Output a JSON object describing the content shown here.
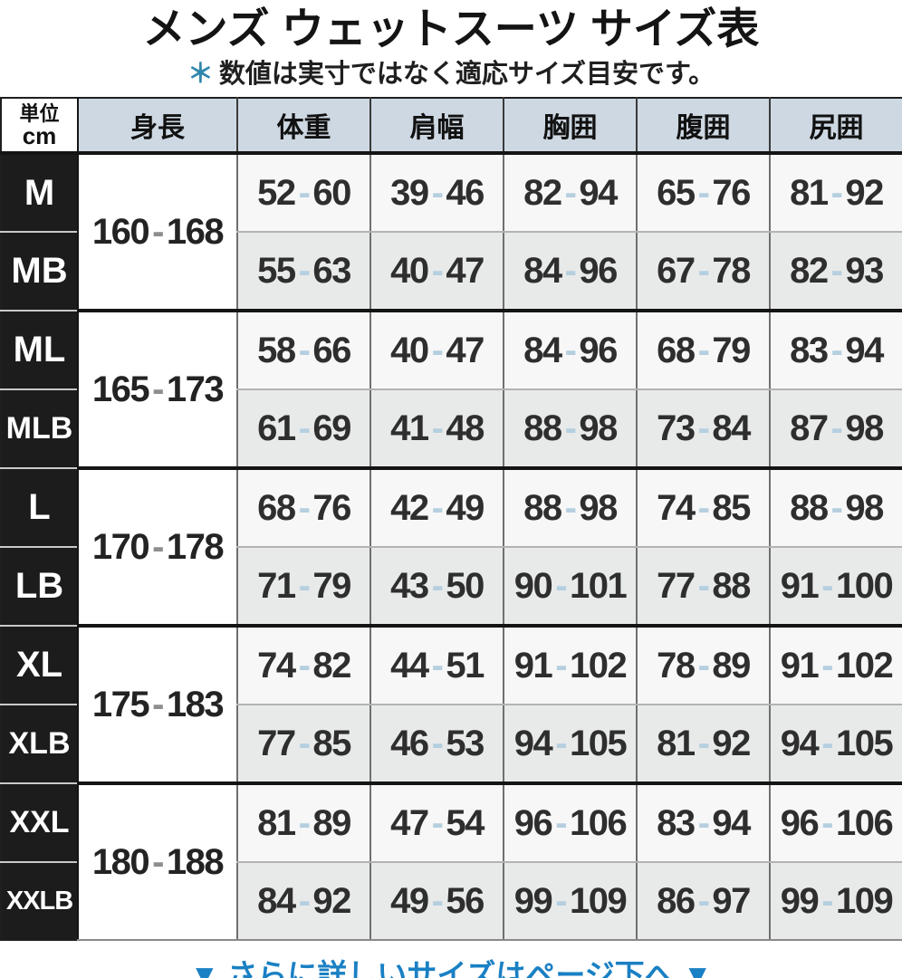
{
  "title": "メンズ ウェットスーツ サイズ表",
  "note": {
    "marker": "＊",
    "text": "数値は実寸ではなく適応サイズ目安です。"
  },
  "table": {
    "unit_header": {
      "line1": "単位",
      "line2": "cm"
    },
    "column_headers": [
      "身長",
      "体重",
      "肩幅",
      "胸囲",
      "腹囲",
      "尻囲"
    ],
    "groups": [
      {
        "height": "160-168",
        "rows": [
          {
            "size": "M",
            "values": [
              "52-60",
              "39-46",
              "82-94",
              "65-76",
              "81-92"
            ]
          },
          {
            "size": "MB",
            "values": [
              "55-63",
              "40-47",
              "84-96",
              "67-78",
              "82-93"
            ]
          }
        ]
      },
      {
        "height": "165-173",
        "rows": [
          {
            "size": "ML",
            "values": [
              "58-66",
              "40-47",
              "84-96",
              "68-79",
              "83-94"
            ]
          },
          {
            "size": "MLB",
            "values": [
              "61-69",
              "41-48",
              "88-98",
              "73-84",
              "87-98"
            ]
          }
        ]
      },
      {
        "height": "170-178",
        "rows": [
          {
            "size": "L",
            "values": [
              "68-76",
              "42-49",
              "88-98",
              "74-85",
              "88-98"
            ]
          },
          {
            "size": "LB",
            "values": [
              "71-79",
              "43-50",
              "90-101",
              "77-88",
              "91-100"
            ]
          }
        ]
      },
      {
        "height": "175-183",
        "rows": [
          {
            "size": "XL",
            "values": [
              "74-82",
              "44-51",
              "91-102",
              "78-89",
              "91-102"
            ]
          },
          {
            "size": "XLB",
            "values": [
              "77-85",
              "46-53",
              "94-105",
              "81-92",
              "94-105"
            ]
          }
        ]
      },
      {
        "height": "180-188",
        "rows": [
          {
            "size": "XXL",
            "values": [
              "81-89",
              "47-54",
              "96-106",
              "83-94",
              "96-106"
            ]
          },
          {
            "size": "XXLB",
            "values": [
              "84-92",
              "49-56",
              "99-109",
              "86-97",
              "99-109"
            ]
          }
        ]
      }
    ]
  },
  "footer": {
    "text": "▼ さらに詳しいサイズはページ下へ ▼"
  },
  "colors": {
    "accent_blue": "#1a80c4",
    "note_marker_blue": "#2e86ad",
    "header_bg": "#ced8e2",
    "row_a_bg": "#f7f7f7",
    "row_b_bg": "#e8eaea",
    "label_bg": "#1c1c1c",
    "label_text": "#ffffff",
    "number_text": "#2e2e2e",
    "dash_blue": "#b5cfdf",
    "dash_grey": "#8e8e8e"
  }
}
